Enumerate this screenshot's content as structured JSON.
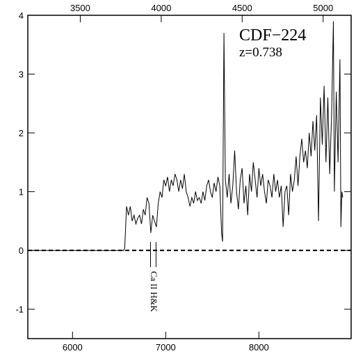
{
  "chart_data": {
    "type": "line",
    "annotations": [
      "CDF−224",
      "z=0.738",
      "Ca II H&K"
    ],
    "xlim": [
      5520,
      8990
    ],
    "xticks": [
      6000,
      7000,
      8000
    ],
    "x2lim": [
      3176,
      5173
    ],
    "x2ticks": [
      3500,
      4000,
      4500,
      5000
    ],
    "ylim": [
      -1.5,
      4
    ],
    "yticks": [
      -1,
      0,
      1,
      2,
      3,
      4
    ],
    "hline": 0,
    "markers": [
      6837,
      6896
    ],
    "color": "#000000",
    "x": [
      5520,
      6550,
      6560,
      6580,
      6600,
      6620,
      6640,
      6660,
      6680,
      6700,
      6720,
      6740,
      6760,
      6780,
      6800,
      6820,
      6840,
      6860,
      6880,
      6900,
      6920,
      6940,
      6960,
      6980,
      7000,
      7020,
      7040,
      7060,
      7080,
      7100,
      7120,
      7140,
      7160,
      7180,
      7200,
      7220,
      7240,
      7260,
      7280,
      7300,
      7320,
      7340,
      7360,
      7380,
      7400,
      7420,
      7440,
      7460,
      7480,
      7500,
      7520,
      7540,
      7560,
      7580,
      7600,
      7610,
      7625,
      7640,
      7660,
      7680,
      7700,
      7720,
      7740,
      7760,
      7780,
      7800,
      7820,
      7840,
      7860,
      7880,
      7900,
      7920,
      7940,
      7960,
      7980,
      8000,
      8020,
      8040,
      8060,
      8080,
      8100,
      8120,
      8140,
      8160,
      8180,
      8200,
      8220,
      8240,
      8260,
      8280,
      8300,
      8320,
      8340,
      8360,
      8380,
      8400,
      8420,
      8440,
      8460,
      8480,
      8500,
      8520,
      8540,
      8560,
      8580,
      8600,
      8620,
      8640,
      8660,
      8680,
      8700,
      8720,
      8740,
      8760,
      8780,
      8800,
      8810,
      8830,
      8850,
      8870,
      8880,
      8890,
      8900
    ],
    "y": [
      0,
      0,
      0.05,
      0.75,
      0.6,
      0.75,
      0.5,
      0.6,
      0.45,
      0.55,
      0.6,
      0.45,
      0.7,
      0.6,
      0.9,
      0.8,
      0.3,
      0.6,
      0.5,
      0.4,
      0.8,
      1.0,
      0.9,
      1.2,
      1.1,
      1.25,
      1.0,
      1.2,
      1.1,
      1.3,
      1.2,
      1.0,
      1.2,
      1.05,
      1.3,
      1.0,
      0.9,
      0.75,
      0.9,
      0.8,
      1.0,
      0.85,
      0.9,
      0.8,
      1.0,
      0.85,
      1.1,
      1.2,
      1.0,
      0.9,
      1.15,
      1.0,
      1.25,
      1.1,
      0.3,
      0.15,
      3.7,
      1.2,
      0.9,
      1.3,
      0.8,
      1.1,
      1.7,
      1.0,
      0.7,
      1.2,
      1.4,
      0.8,
      1.1,
      0.6,
      1.3,
      1.0,
      1.5,
      1.2,
      0.9,
      1.4,
      1.1,
      1.3,
      1.0,
      0.8,
      1.2,
      1.1,
      0.9,
      1.3,
      1.0,
      1.2,
      0.9,
      1.1,
      0.4,
      1.0,
      1.1,
      0.6,
      1.3,
      1.0,
      1.2,
      1.6,
      1.1,
      1.6,
      1.9,
      1.5,
      1.7,
      1.4,
      2.0,
      1.6,
      2.2,
      1.7,
      2.3,
      0.5,
      2.6,
      1.8,
      2.8,
      1.5,
      2.6,
      1.3,
      2.3,
      3.9,
      1.0,
      2.7,
      1.5,
      3.25,
      0.4,
      1.0,
      0.9
    ]
  }
}
